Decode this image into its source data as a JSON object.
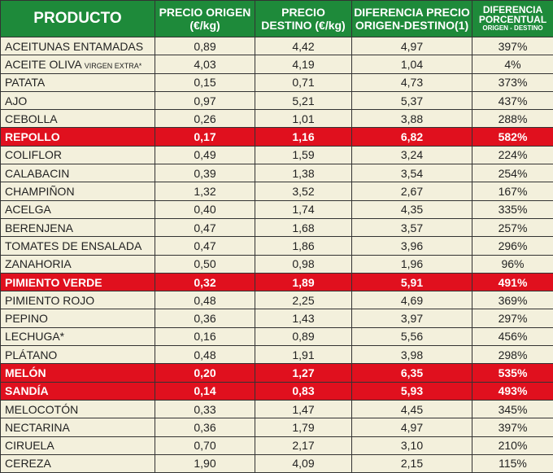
{
  "header": {
    "producto": "PRODUCTO",
    "origen": "PRECIO ORIGEN (€/kg)",
    "destino": "PRECIO DESTINO (€/kg)",
    "diferencia": "DIFERENCIA PRECIO ORIGEN-DESTINO(1)",
    "porcentual": "DIFERENCIA PORCENTUAL",
    "porcentual_sub": "ORIGEN - DESTINO"
  },
  "colors": {
    "header": "#1e8a3a",
    "highlight": "#e0101e",
    "cell": "#f3f0dc"
  },
  "rows": [
    {
      "p": "ACEITUNAS ENTAMADAS",
      "o": "0,89",
      "d": "4,42",
      "dif": "4,97",
      "pct": "397%"
    },
    {
      "p": "ACEITE OLIVA",
      "ps": "VIRGEN EXTRA*",
      "o": "4,03",
      "d": "4,19",
      "dif": "1,04",
      "pct": "4%"
    },
    {
      "p": "PATATA",
      "o": "0,15",
      "d": "0,71",
      "dif": "4,73",
      "pct": "373%"
    },
    {
      "p": "AJO",
      "o": "0,97",
      "d": "5,21",
      "dif": "5,37",
      "pct": "437%"
    },
    {
      "p": "CEBOLLA",
      "o": "0,26",
      "d": "1,01",
      "dif": "3,88",
      "pct": "288%"
    },
    {
      "p": "REPOLLO",
      "o": "0,17",
      "d": "1,16",
      "dif": "6,82",
      "pct": "582%",
      "hl": true
    },
    {
      "p": "COLIFLOR",
      "o": "0,49",
      "d": "1,59",
      "dif": "3,24",
      "pct": "224%"
    },
    {
      "p": "CALABACIN",
      "o": "0,39",
      "d": "1,38",
      "dif": "3,54",
      "pct": "254%"
    },
    {
      "p": "CHAMPIÑON",
      "o": "1,32",
      "d": "3,52",
      "dif": "2,67",
      "pct": "167%"
    },
    {
      "p": "ACELGA",
      "o": "0,40",
      "d": "1,74",
      "dif": "4,35",
      "pct": "335%"
    },
    {
      "p": "BERENJENA",
      "o": "0,47",
      "d": "1,68",
      "dif": "3,57",
      "pct": "257%"
    },
    {
      "p": "TOMATES DE ENSALADA",
      "o": "0,47",
      "d": "1,86",
      "dif": "3,96",
      "pct": "296%"
    },
    {
      "p": "ZANAHORIA",
      "o": "0,50",
      "d": "0,98",
      "dif": "1,96",
      "pct": "96%"
    },
    {
      "p": "PIMIENTO VERDE",
      "o": "0,32",
      "d": "1,89",
      "dif": "5,91",
      "pct": "491%",
      "hl": true
    },
    {
      "p": "PIMIENTO ROJO",
      "o": "0,48",
      "d": "2,25",
      "dif": "4,69",
      "pct": "369%"
    },
    {
      "p": "PEPINO",
      "o": "0,36",
      "d": "1,43",
      "dif": "3,97",
      "pct": "297%"
    },
    {
      "p": "LECHUGA*",
      "o": "0,16",
      "d": "0,89",
      "dif": "5,56",
      "pct": "456%"
    },
    {
      "p": "PLÁTANO",
      "o": "0,48",
      "d": "1,91",
      "dif": "3,98",
      "pct": "298%"
    },
    {
      "p": "MELÓN",
      "o": "0,20",
      "d": "1,27",
      "dif": "6,35",
      "pct": "535%",
      "hl": true
    },
    {
      "p": "SANDÍA",
      "o": "0,14",
      "d": "0,83",
      "dif": "5,93",
      "pct": "493%",
      "hl": true
    },
    {
      "p": "MELOCOTÓN",
      "o": "0,33",
      "d": "1,47",
      "dif": "4,45",
      "pct": "345%"
    },
    {
      "p": "NECTARINA",
      "o": "0,36",
      "d": "1,79",
      "dif": "4,97",
      "pct": "397%"
    },
    {
      "p": "CIRUELA",
      "o": "0,70",
      "d": "2,17",
      "dif": "3,10",
      "pct": "210%"
    },
    {
      "p": "CEREZA",
      "o": "1,90",
      "d": "4,09",
      "dif": "2,15",
      "pct": "115%"
    }
  ]
}
